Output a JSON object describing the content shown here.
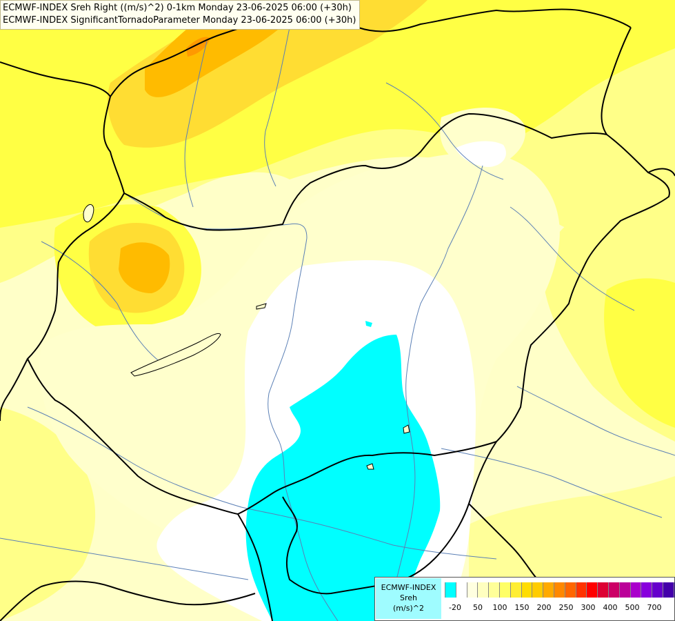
{
  "title": {
    "line1": "ECMWF-INDEX Sreh Right ((m/s)^2) 0-1km Monday 23-06-2025 06:00 (+30h)",
    "line2": "ECMWF-INDEX SignificantTornadoParameter Monday 23-06-2025 06:00 (+30h)"
  },
  "legend": {
    "model": "ECMWF-INDEX",
    "parameter": "Sreh",
    "unit": "(m/s)^2",
    "colors": [
      "#00ffff",
      "#ffffff",
      "#ffffe0",
      "#ffffc0",
      "#ffff99",
      "#ffff66",
      "#ffee33",
      "#ffdd00",
      "#ffcc00",
      "#ffaa00",
      "#ff8800",
      "#ff6600",
      "#ff3300",
      "#ff0000",
      "#dd0033",
      "#cc0066",
      "#bb0099",
      "#aa00cc",
      "#8800dd",
      "#6600cc",
      "#4400aa",
      "#220088"
    ],
    "ticks": [
      "-20",
      "50",
      "100",
      "150",
      "200",
      "250",
      "300",
      "400",
      "500",
      "700"
    ]
  },
  "colors": {
    "cyan": "#00ffff",
    "white": "#ffffff",
    "pale": "#ffffc8",
    "light_yellow": "#ffff99",
    "yellow": "#ffff33",
    "gold": "#ffdd22",
    "orange": "#ffbb00",
    "dark_orange": "#ff8800"
  }
}
